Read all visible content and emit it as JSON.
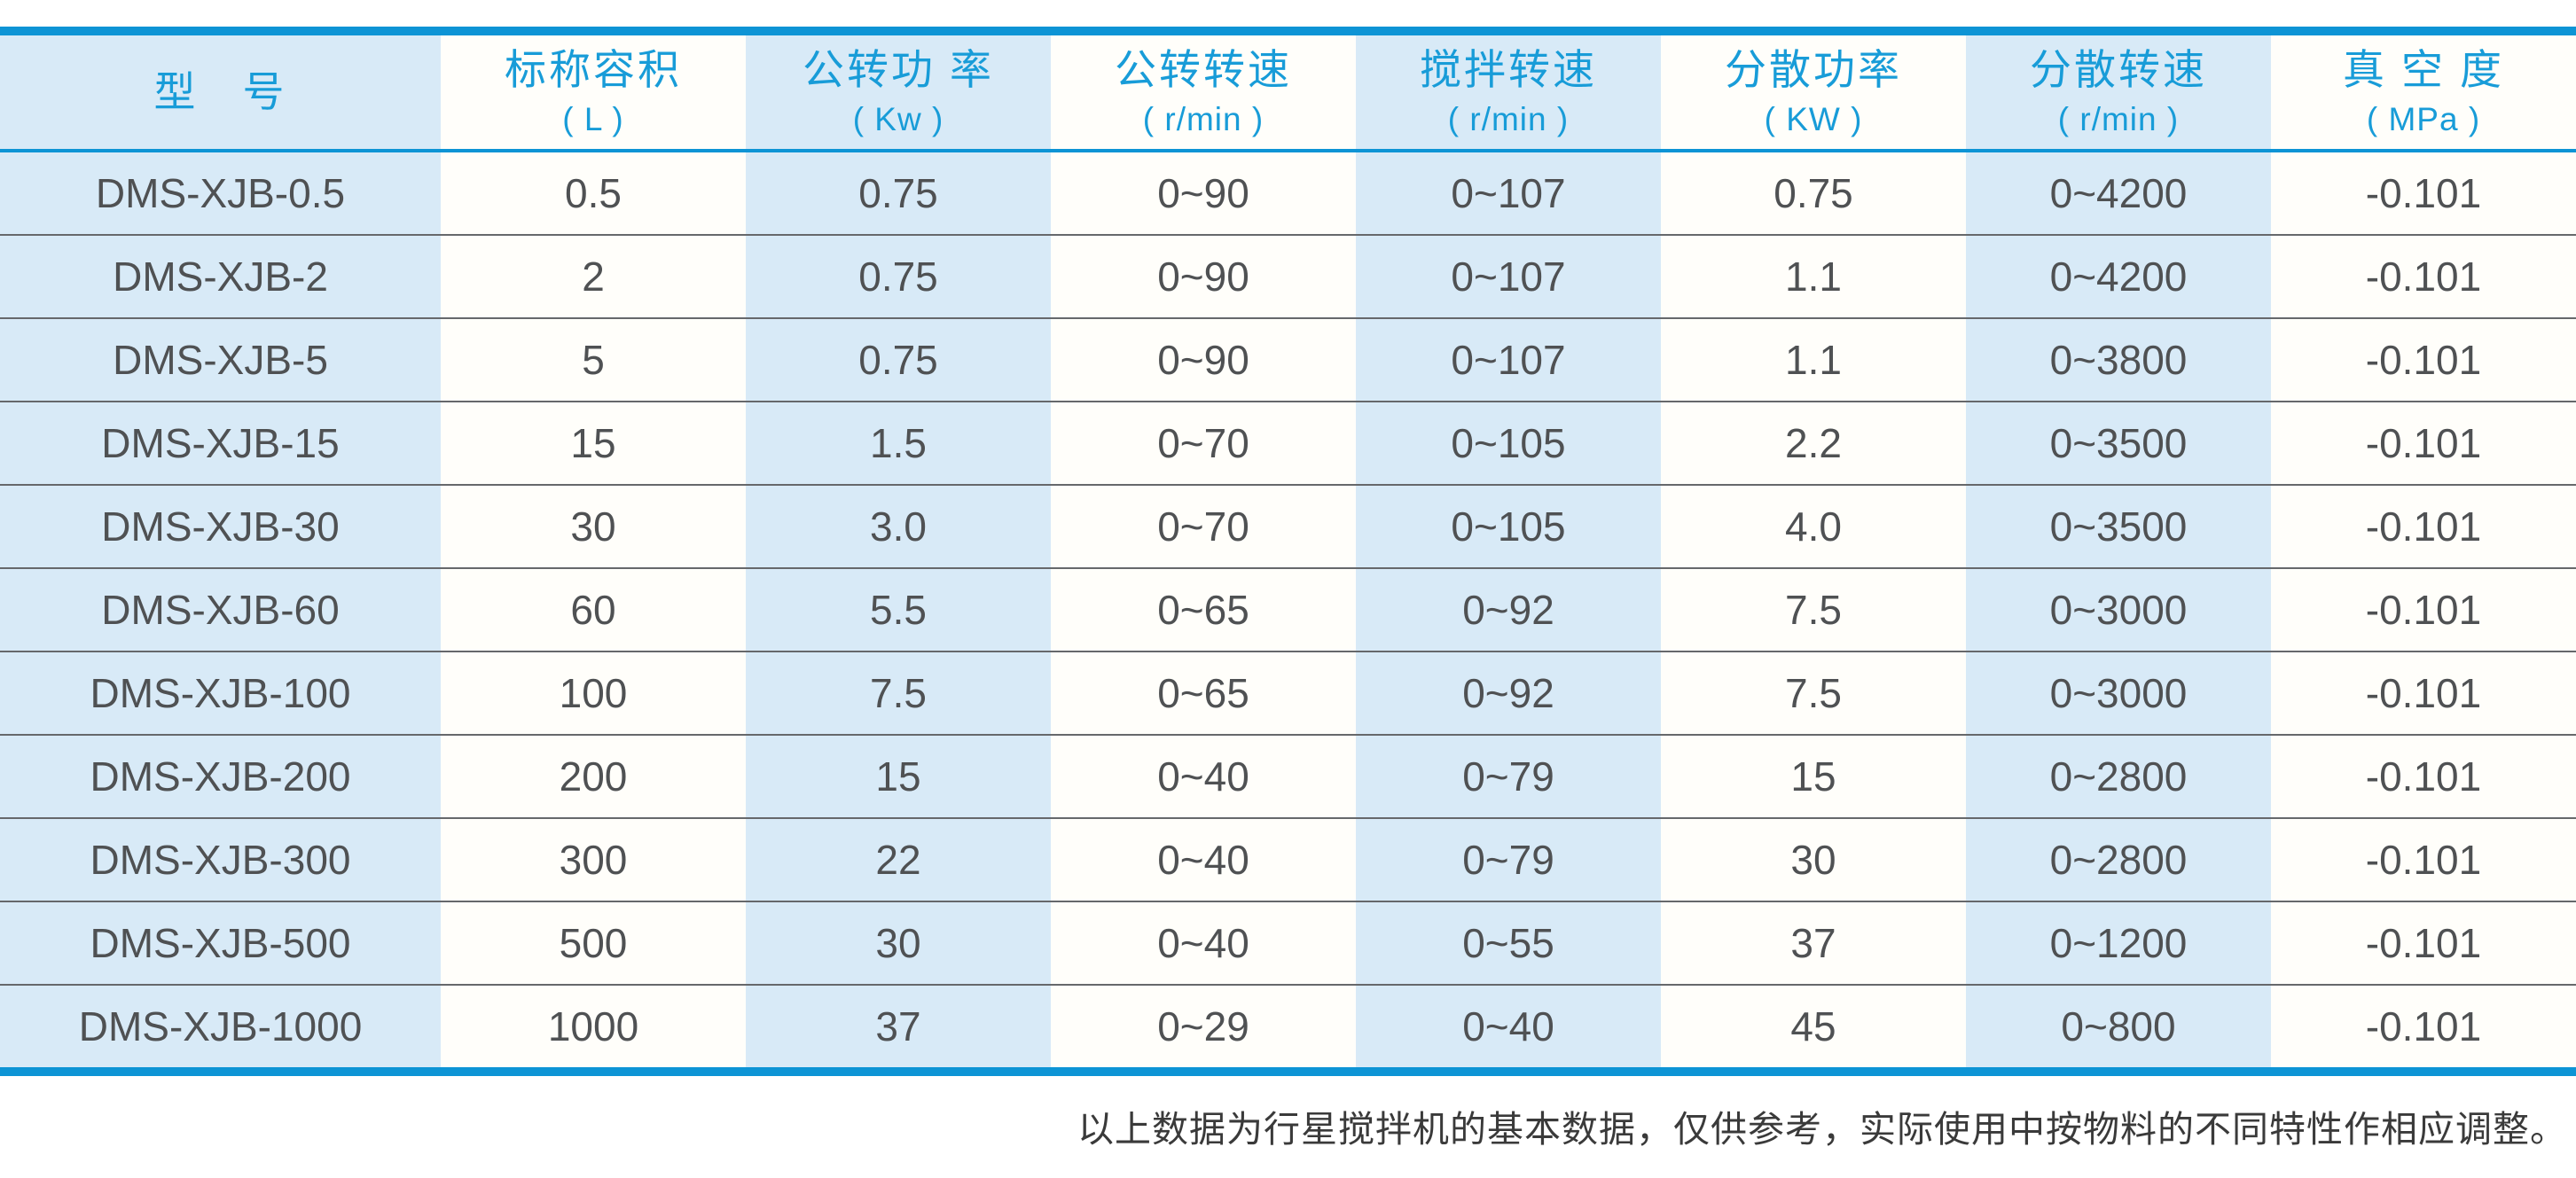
{
  "colors": {
    "accent_blue": "#0d94d5",
    "header_text_blue": "#189cd8",
    "column_light_blue": "#d8eaf7",
    "column_white": "#fffefa",
    "row_separator_gray": "#66686b",
    "cell_text": "#4f5153"
  },
  "chart_data": {
    "type": "table",
    "columns": [
      {
        "title": "型　号",
        "unit": ""
      },
      {
        "title": "标称容积",
        "unit": "( L )"
      },
      {
        "title": "公转功 率",
        "unit": "( Kw )"
      },
      {
        "title": "公转转速",
        "unit": "( r/min )"
      },
      {
        "title": "搅拌转速",
        "unit": "( r/min )"
      },
      {
        "title": "分散功率",
        "unit": "( KW )"
      },
      {
        "title": "分散转速",
        "unit": "( r/min )"
      },
      {
        "title": "真 空 度",
        "unit": "( MPa )"
      }
    ],
    "rows": [
      [
        "DMS-XJB-0.5",
        "0.5",
        "0.75",
        "0~90",
        "0~107",
        "0.75",
        "0~4200",
        "-0.101"
      ],
      [
        "DMS-XJB-2",
        "2",
        "0.75",
        "0~90",
        "0~107",
        "1.1",
        "0~4200",
        "-0.101"
      ],
      [
        "DMS-XJB-5",
        "5",
        "0.75",
        "0~90",
        "0~107",
        "1.1",
        "0~3800",
        "-0.101"
      ],
      [
        "DMS-XJB-15",
        "15",
        "1.5",
        "0~70",
        "0~105",
        "2.2",
        "0~3500",
        "-0.101"
      ],
      [
        "DMS-XJB-30",
        "30",
        "3.0",
        "0~70",
        "0~105",
        "4.0",
        "0~3500",
        "-0.101"
      ],
      [
        "DMS-XJB-60",
        "60",
        "5.5",
        "0~65",
        "0~92",
        "7.5",
        "0~3000",
        "-0.101"
      ],
      [
        "DMS-XJB-100",
        "100",
        "7.5",
        "0~65",
        "0~92",
        "7.5",
        "0~3000",
        "-0.101"
      ],
      [
        "DMS-XJB-200",
        "200",
        "15",
        "0~40",
        "0~79",
        "15",
        "0~2800",
        "-0.101"
      ],
      [
        "DMS-XJB-300",
        "300",
        "22",
        "0~40",
        "0~79",
        "30",
        "0~2800",
        "-0.101"
      ],
      [
        "DMS-XJB-500",
        "500",
        "30",
        "0~40",
        "0~55",
        "37",
        "0~1200",
        "-0.101"
      ],
      [
        "DMS-XJB-1000",
        "1000",
        "37",
        "0~29",
        "0~40",
        "45",
        "0~800",
        "-0.101"
      ]
    ]
  },
  "footer": {
    "note": "以上数据为行星搅拌机的基本数据，仅供参考，实际使用中按物料的不同特性作相应调整。"
  }
}
